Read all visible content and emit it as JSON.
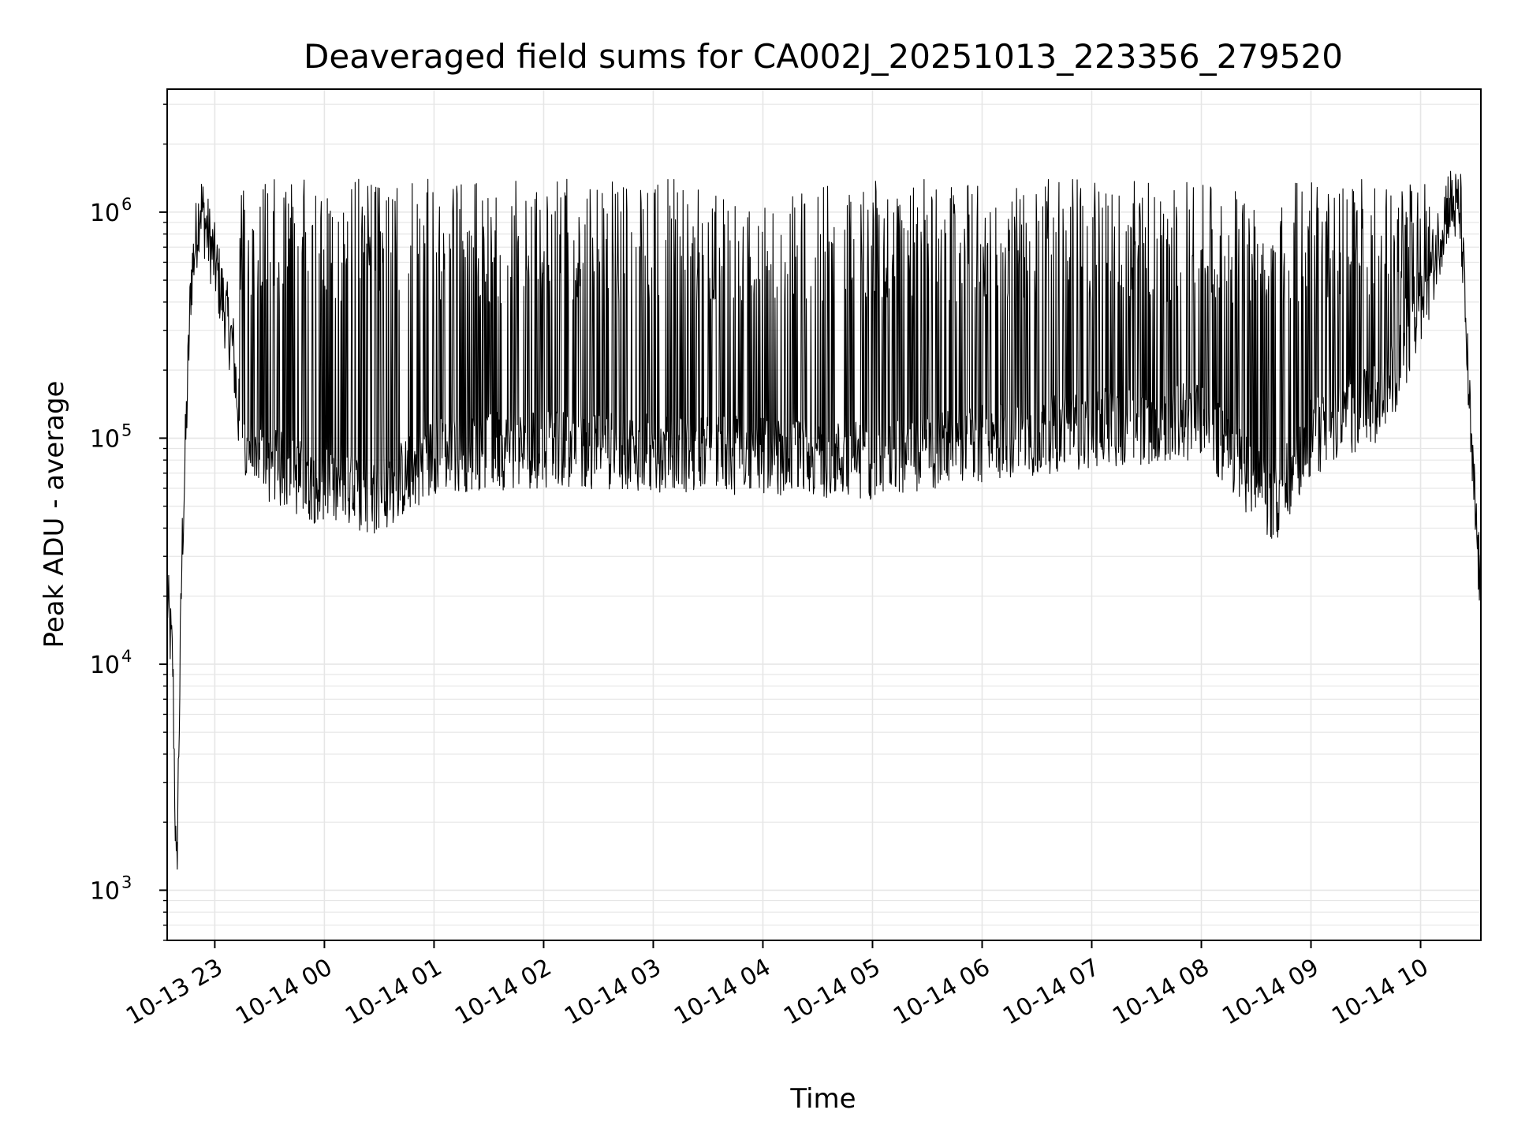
{
  "chart_data": {
    "type": "line",
    "title": "Deaveraged field sums for CA002J_20251013_223356_279520",
    "xlabel": "Time",
    "ylabel": "Peak ADU - average",
    "x_ticks": [
      "10-13 23",
      "10-14 00",
      "10-14 01",
      "10-14 02",
      "10-14 03",
      "10-14 04",
      "10-14 05",
      "10-14 06",
      "10-14 07",
      "10-14 08",
      "10-14 09",
      "10-14 10"
    ],
    "y_ticks": [
      {
        "base": "10",
        "exp": "3",
        "value": 1000
      },
      {
        "base": "10",
        "exp": "4",
        "value": 10000
      },
      {
        "base": "10",
        "exp": "5",
        "value": 100000
      },
      {
        "base": "10",
        "exp": "6",
        "value": 1000000
      }
    ],
    "yscale": "log",
    "ylim": [
      600,
      3500000
    ],
    "xlim": [
      "2025-10-13 22:33:56",
      "2025-10-14 10:33:00"
    ],
    "grid": true,
    "line_color": "#000000",
    "grid_color": "#e6e6e6",
    "series": [
      {
        "profile": [
          [
            "2025-10-13 22:33:56",
            20000
          ],
          [
            "2025-10-13 22:37:00",
            10000
          ],
          [
            "2025-10-13 22:39:00",
            1000
          ],
          [
            "2025-10-13 22:42:00",
            30000
          ],
          [
            "2025-10-13 22:47:00",
            500000
          ],
          [
            "2025-10-13 22:52:00",
            1100000
          ],
          [
            "2025-10-13 23:00:00",
            600000
          ],
          [
            "2025-10-13 23:10:00",
            250000
          ],
          [
            "2025-10-13 23:15:00",
            85000
          ],
          [
            "2025-10-14 00:00:00",
            60000
          ],
          [
            "2025-10-14 00:30:00",
            55000
          ],
          [
            "2025-10-14 01:00:00",
            85000
          ],
          [
            "2025-10-14 02:00:00",
            90000
          ],
          [
            "2025-10-14 05:00:00",
            80000
          ],
          [
            "2025-10-14 07:00:00",
            110000
          ],
          [
            "2025-10-14 08:00:00",
            120000
          ],
          [
            "2025-10-14 08:40:00",
            50000
          ],
          [
            "2025-10-14 09:00:00",
            100000
          ],
          [
            "2025-10-14 09:40:00",
            150000
          ],
          [
            "2025-10-14 10:00:00",
            350000
          ],
          [
            "2025-10-14 10:15:00",
            1100000
          ],
          [
            "2025-10-14 10:22:00",
            1000000
          ],
          [
            "2025-10-14 10:28:00",
            80000
          ],
          [
            "2025-10-14 10:33:00",
            20000
          ]
        ],
        "spike_peak": 1400000
      }
    ]
  }
}
